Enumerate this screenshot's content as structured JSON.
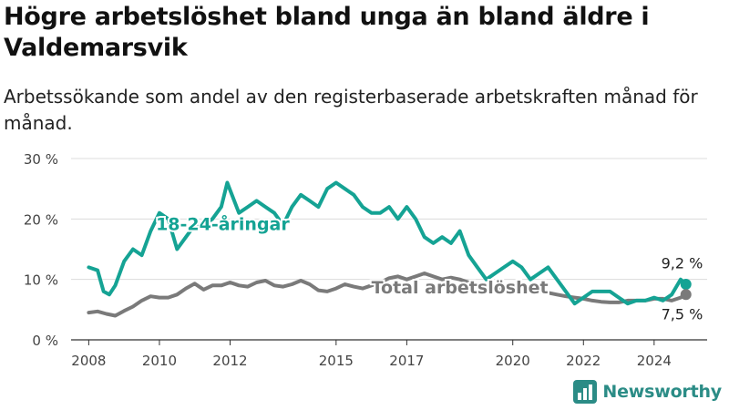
{
  "title": "Högre arbetslöshet bland unga än bland äldre i Valdemarsvik",
  "subtitle": "Arbetssökande som andel av den registerbaserade arbetskraften månad för månad.",
  "brand": "Newsworthy",
  "colors": {
    "youth": "#15a394",
    "total": "#7a7a7a",
    "grid": "#dcdcdc",
    "axis": "#333333",
    "brand": "#2b8c86"
  },
  "chart_data": {
    "type": "line",
    "ylim": [
      0,
      30
    ],
    "yticks": [
      0,
      10,
      20,
      30
    ],
    "ytick_labels": [
      "0 %",
      "10 %",
      "20 %",
      "30 %"
    ],
    "xlim": [
      2007.5,
      2025.5
    ],
    "xticks": [
      2008,
      2010,
      2012,
      2015,
      2017,
      2020,
      2022,
      2024
    ],
    "grid": true,
    "series": [
      {
        "name": "18-24-åringar",
        "color": "#15a394",
        "x": [
          2008.0,
          2008.25,
          2008.42,
          2008.58,
          2008.75,
          2009.0,
          2009.25,
          2009.5,
          2009.75,
          2010.0,
          2010.25,
          2010.5,
          2010.75,
          2011.0,
          2011.25,
          2011.5,
          2011.75,
          2011.92,
          2012.25,
          2012.5,
          2012.75,
          2013.0,
          2013.25,
          2013.5,
          2013.75,
          2014.0,
          2014.25,
          2014.5,
          2014.75,
          2015.0,
          2015.25,
          2015.5,
          2015.75,
          2016.0,
          2016.25,
          2016.5,
          2016.75,
          2017.0,
          2017.25,
          2017.5,
          2017.75,
          2018.0,
          2018.25,
          2018.5,
          2018.75,
          2019.0,
          2019.25,
          2019.5,
          2019.75,
          2020.0,
          2020.25,
          2020.5,
          2020.75,
          2021.0,
          2021.25,
          2021.5,
          2021.75,
          2022.0,
          2022.25,
          2022.5,
          2022.75,
          2023.0,
          2023.25,
          2023.5,
          2023.75,
          2024.0,
          2024.25,
          2024.5,
          2024.75,
          2024.9
        ],
        "values": [
          12,
          11.5,
          8,
          7.5,
          9,
          13,
          15,
          14,
          18,
          21,
          20,
          15,
          17,
          19,
          19,
          20,
          22,
          26,
          21,
          22,
          23,
          22,
          21,
          19,
          22,
          24,
          23,
          22,
          25,
          26,
          25,
          24,
          22,
          21,
          21,
          22,
          20,
          22,
          20,
          17,
          16,
          17,
          16,
          18,
          14,
          12,
          10,
          11,
          12,
          13,
          12,
          10,
          11,
          12,
          10,
          8,
          6,
          7,
          8,
          8,
          8,
          7,
          6,
          6.5,
          6.5,
          7,
          6.5,
          7.5,
          10,
          9.2
        ]
      },
      {
        "name": "Total arbetslöshet",
        "color": "#7a7a7a",
        "x": [
          2008.0,
          2008.25,
          2008.5,
          2008.75,
          2009.0,
          2009.25,
          2009.5,
          2009.75,
          2010.0,
          2010.25,
          2010.5,
          2010.75,
          2011.0,
          2011.25,
          2011.5,
          2011.75,
          2012.0,
          2012.25,
          2012.5,
          2012.75,
          2013.0,
          2013.25,
          2013.5,
          2013.75,
          2014.0,
          2014.25,
          2014.5,
          2014.75,
          2015.0,
          2015.25,
          2015.5,
          2015.75,
          2016.0,
          2016.25,
          2016.5,
          2016.75,
          2017.0,
          2017.25,
          2017.5,
          2017.75,
          2018.0,
          2018.25,
          2018.5,
          2018.75,
          2019.0,
          2019.25,
          2019.5,
          2019.75,
          2020.0,
          2020.25,
          2020.5,
          2020.75,
          2021.0,
          2021.25,
          2021.5,
          2021.75,
          2022.0,
          2022.25,
          2022.5,
          2022.75,
          2023.0,
          2023.25,
          2023.5,
          2023.75,
          2024.0,
          2024.25,
          2024.5,
          2024.75,
          2024.9
        ],
        "values": [
          4.5,
          4.7,
          4.3,
          4.0,
          4.8,
          5.5,
          6.5,
          7.2,
          7.0,
          7.0,
          7.5,
          8.5,
          9.3,
          8.3,
          9.0,
          9.0,
          9.5,
          9.0,
          8.8,
          9.5,
          9.8,
          9.0,
          8.8,
          9.2,
          9.8,
          9.2,
          8.2,
          8.0,
          8.5,
          9.2,
          8.8,
          8.5,
          9.0,
          9.5,
          10.2,
          10.5,
          10.0,
          10.5,
          11.0,
          10.5,
          10.0,
          10.3,
          10.0,
          9.5,
          9.0,
          8.5,
          8.2,
          8.5,
          9.0,
          8.8,
          8.5,
          8.0,
          7.8,
          7.5,
          7.2,
          7.0,
          6.8,
          6.5,
          6.3,
          6.2,
          6.2,
          6.5,
          6.5,
          6.5,
          6.8,
          6.8,
          6.5,
          7.0,
          7.5
        ]
      }
    ],
    "labels": [
      {
        "text": "18-24-åringar",
        "series": "18-24-åringar"
      },
      {
        "text": "Total arbetslöshet",
        "series": "Total arbetslöshet"
      }
    ],
    "end_labels": [
      {
        "series": "18-24-åringar",
        "text": "9,2 %",
        "value": 9.2
      },
      {
        "series": "Total arbetslöshet",
        "text": "7,5 %",
        "value": 7.5
      }
    ]
  }
}
